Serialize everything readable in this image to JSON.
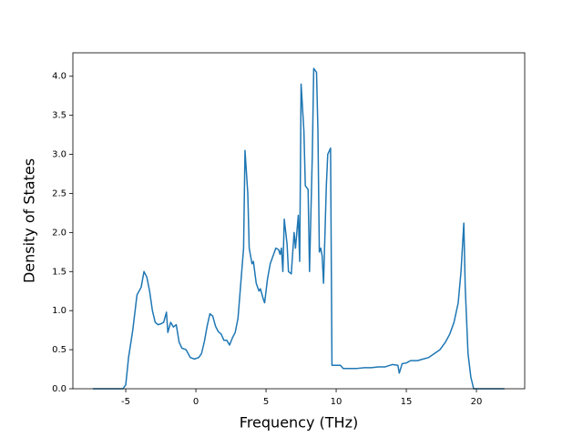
{
  "chart_data": {
    "type": "line",
    "xlabel": "Frequency (THz)",
    "ylabel": "Density of States",
    "color": "#1f77b4",
    "xlim": [
      -8.77,
      23.44
    ],
    "ylim": [
      0,
      4.3
    ],
    "xticks": [
      -5,
      0,
      5,
      10,
      15,
      20
    ],
    "yticks": [
      {
        "value": 0,
        "label": "0.0"
      },
      0.5,
      {
        "value": 1,
        "label": "1.0"
      },
      1.5,
      {
        "value": 2,
        "label": "2.0"
      },
      2.5,
      {
        "value": 3,
        "label": "3.0"
      },
      3.5,
      {
        "value": 4,
        "label": "4.0"
      }
    ],
    "x": [
      -7.34,
      -5.2,
      -5.0,
      -4.8,
      -4.5,
      -4.2,
      -3.9,
      -3.7,
      -3.5,
      -3.3,
      -3.1,
      -2.9,
      -2.7,
      -2.5,
      -2.3,
      -2.1,
      -2.0,
      -1.8,
      -1.6,
      -1.4,
      -1.2,
      -1.0,
      -0.7,
      -0.4,
      -0.1,
      0.2,
      0.4,
      0.6,
      0.8,
      1.0,
      1.2,
      1.4,
      1.6,
      1.8,
      2.0,
      2.2,
      2.4,
      2.6,
      2.8,
      3.0,
      3.2,
      3.4,
      3.5,
      3.7,
      3.8,
      4.0,
      4.1,
      4.3,
      4.5,
      4.6,
      4.8,
      4.9,
      5.1,
      5.3,
      5.5,
      5.7,
      5.9,
      6.0,
      6.1,
      6.2,
      6.3,
      6.5,
      6.6,
      6.8,
      7.0,
      7.1,
      7.3,
      7.4,
      7.5,
      7.7,
      7.8,
      8.0,
      8.1,
      8.3,
      8.4,
      8.6,
      8.7,
      8.8,
      8.9,
      9.0,
      9.1,
      9.3,
      9.4,
      9.6,
      9.7,
      10.0,
      10.3,
      10.5,
      11.0,
      11.5,
      12.0,
      12.5,
      13.0,
      13.5,
      14.0,
      14.4,
      14.5,
      14.7,
      15.0,
      15.3,
      15.8,
      16.2,
      16.6,
      17.0,
      17.4,
      17.8,
      18.1,
      18.4,
      18.7,
      18.9,
      19.1,
      19.2,
      19.4,
      19.6,
      19.8,
      22.0
    ],
    "values": [
      0,
      0,
      0.05,
      0.4,
      0.75,
      1.2,
      1.3,
      1.5,
      1.43,
      1.25,
      1.0,
      0.85,
      0.82,
      0.83,
      0.85,
      0.98,
      0.72,
      0.85,
      0.79,
      0.82,
      0.6,
      0.52,
      0.5,
      0.4,
      0.38,
      0.4,
      0.45,
      0.6,
      0.8,
      0.96,
      0.93,
      0.8,
      0.73,
      0.7,
      0.62,
      0.62,
      0.56,
      0.65,
      0.72,
      0.9,
      1.35,
      1.8,
      3.05,
      2.5,
      1.8,
      1.6,
      1.63,
      1.35,
      1.25,
      1.28,
      1.15,
      1.1,
      1.4,
      1.6,
      1.7,
      1.8,
      1.78,
      1.72,
      1.8,
      1.5,
      2.17,
      1.85,
      1.5,
      1.47,
      2.0,
      1.8,
      2.22,
      1.63,
      3.9,
      3.3,
      2.6,
      2.55,
      1.5,
      3.0,
      4.1,
      4.05,
      3.3,
      1.75,
      1.8,
      1.7,
      1.35,
      2.6,
      3.0,
      3.08,
      0.3,
      0.3,
      0.3,
      0.26,
      0.26,
      0.26,
      0.27,
      0.27,
      0.28,
      0.28,
      0.31,
      0.3,
      0.2,
      0.32,
      0.33,
      0.36,
      0.36,
      0.38,
      0.4,
      0.45,
      0.5,
      0.6,
      0.7,
      0.85,
      1.1,
      1.5,
      2.12,
      1.3,
      0.45,
      0.15,
      0,
      0
    ]
  }
}
